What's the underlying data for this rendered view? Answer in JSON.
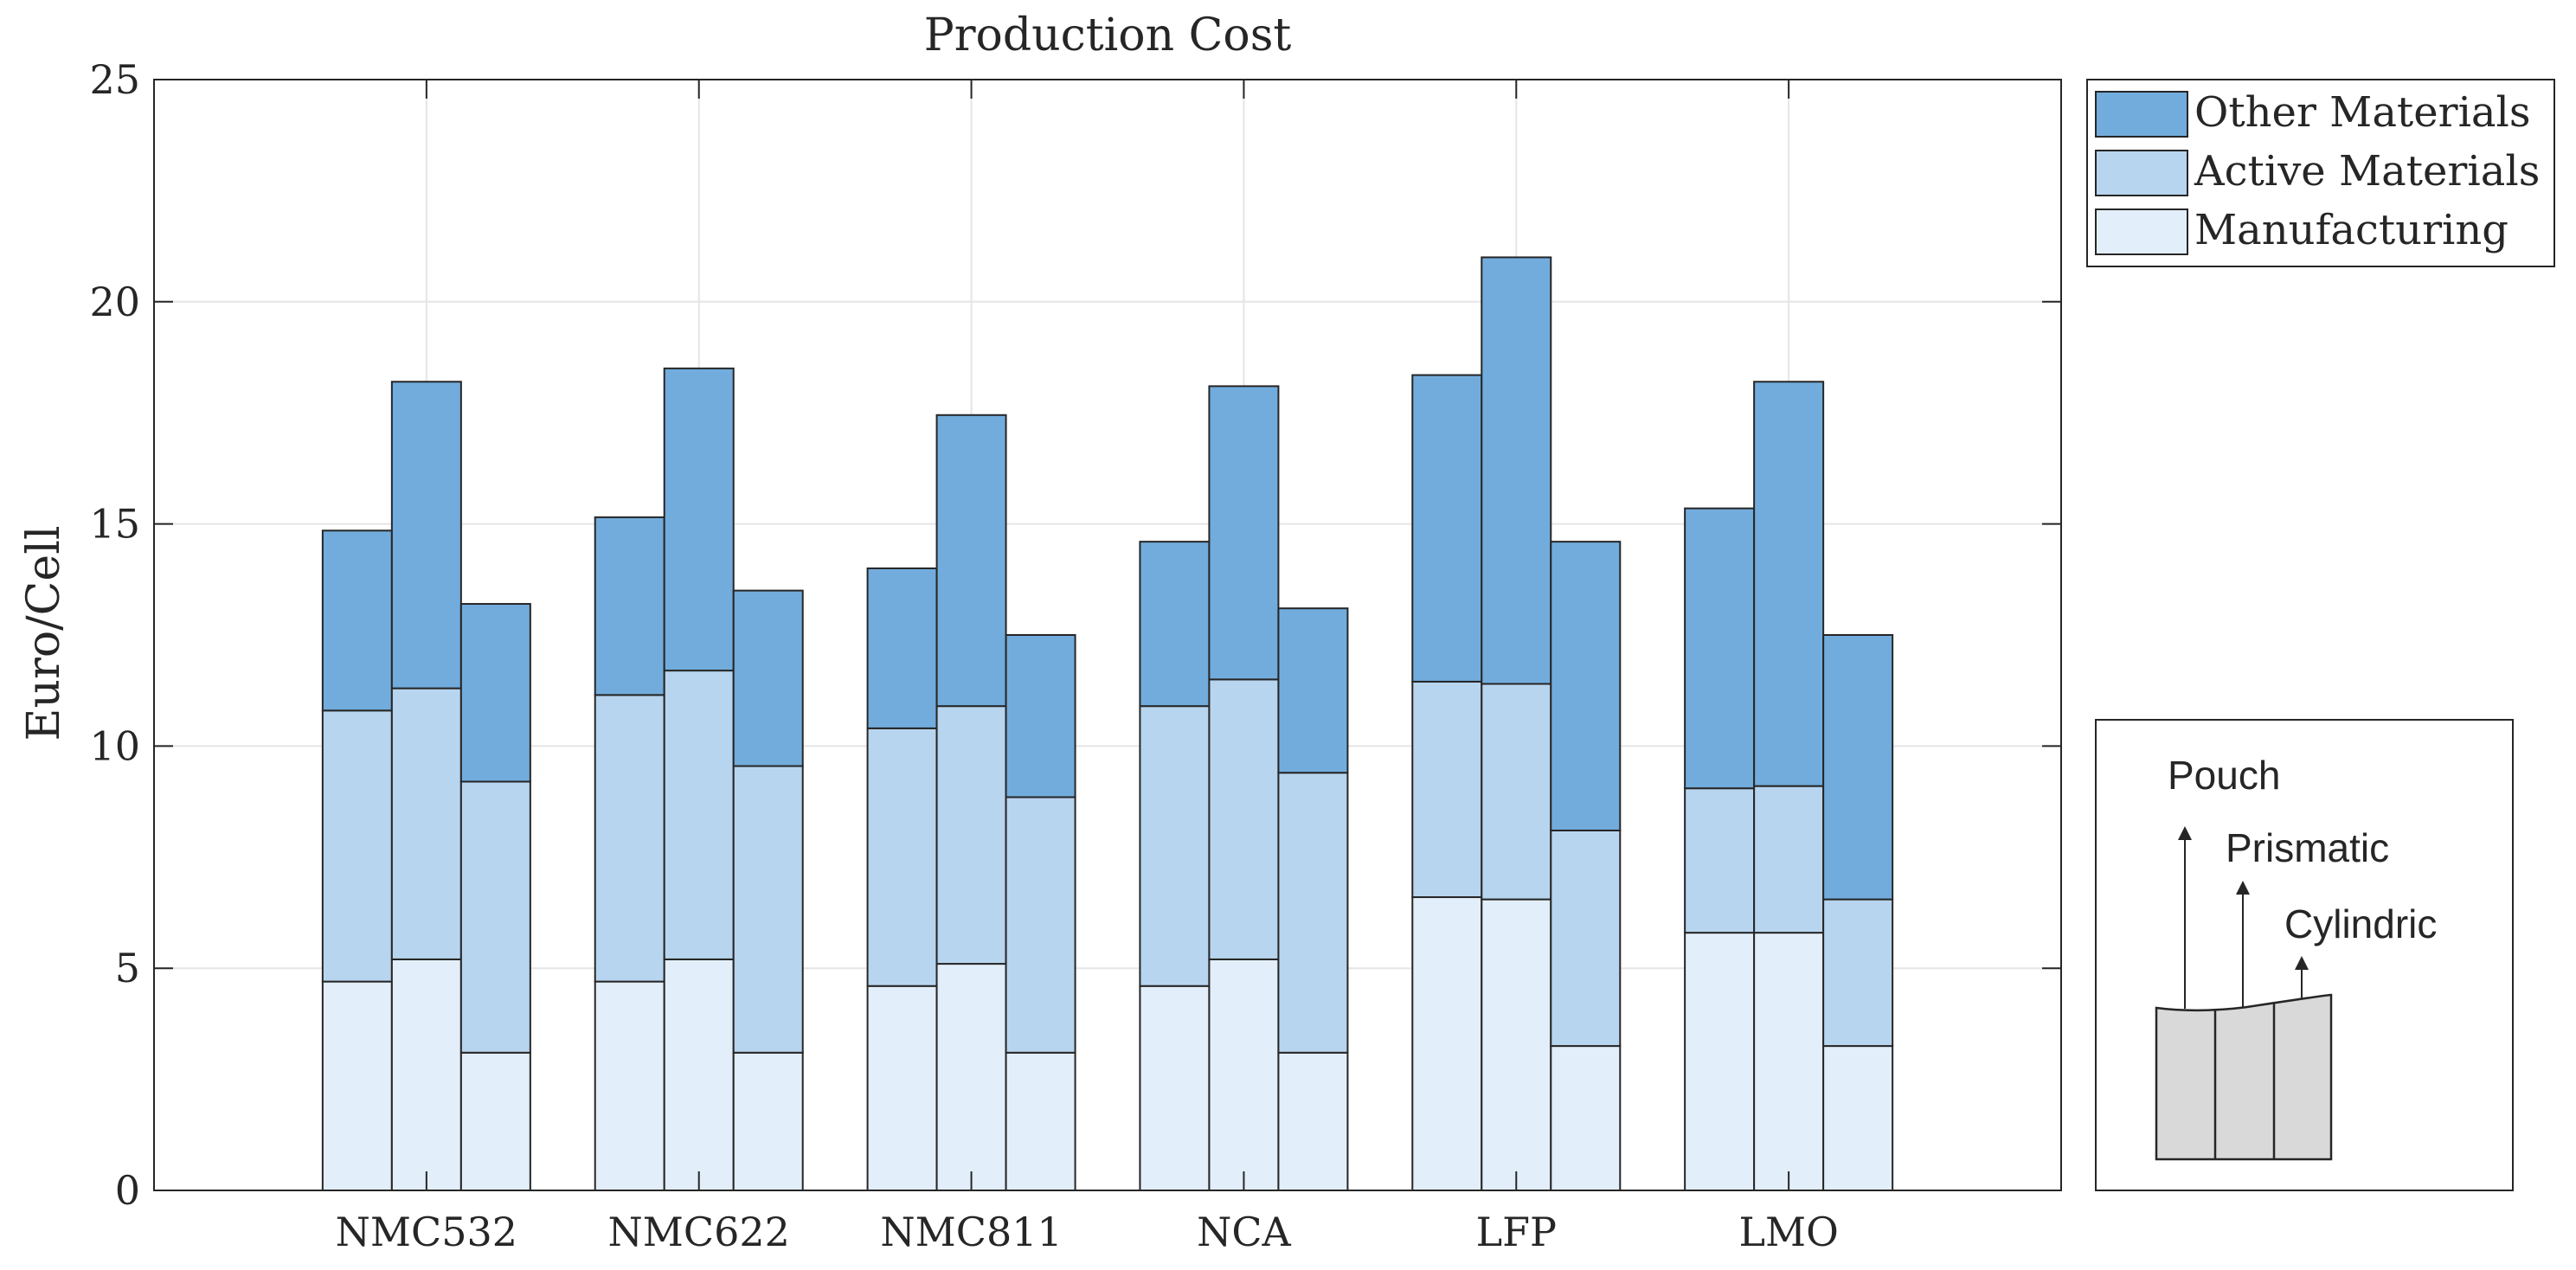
{
  "chart_data": {
    "type": "bar",
    "stacked": true,
    "title": "Production Cost",
    "xlabel": "",
    "ylabel": "Euro/Cell",
    "ylim": [
      0,
      25
    ],
    "yticks": [
      0,
      5,
      10,
      15,
      20,
      25
    ],
    "grid": true,
    "legend_position": "top-right-outside",
    "categories": [
      "NMC532",
      "NMC622",
      "NMC811",
      "NCA",
      "LFP",
      "LMO"
    ],
    "formats": [
      "Pouch",
      "Prismatic",
      "Cylindric"
    ],
    "series": [
      {
        "name": "Manufacturing",
        "color": "#e2eef9",
        "values": [
          [
            4.7,
            5.2,
            3.1
          ],
          [
            4.7,
            5.2,
            3.1
          ],
          [
            4.6,
            5.1,
            3.1
          ],
          [
            4.6,
            5.2,
            3.1
          ],
          [
            6.6,
            6.55,
            3.25
          ],
          [
            5.8,
            5.8,
            3.25
          ]
        ]
      },
      {
        "name": "Active Materials",
        "color": "#b8d5ef",
        "values": [
          [
            6.1,
            6.1,
            6.1
          ],
          [
            6.45,
            6.5,
            6.45
          ],
          [
            5.8,
            5.8,
            5.75
          ],
          [
            6.3,
            6.3,
            6.3
          ],
          [
            4.85,
            4.85,
            4.85
          ],
          [
            3.25,
            3.3,
            3.3
          ]
        ]
      },
      {
        "name": "Other Materials",
        "color": "#72acdc",
        "values": [
          [
            4.05,
            6.9,
            4.0
          ],
          [
            4.0,
            6.8,
            3.95
          ],
          [
            3.6,
            6.55,
            3.65
          ],
          [
            3.7,
            6.6,
            3.7
          ],
          [
            6.9,
            9.6,
            6.5
          ],
          [
            6.3,
            9.1,
            5.95
          ]
        ]
      }
    ],
    "legend_order": [
      "Other Materials",
      "Active Materials",
      "Manufacturing"
    ],
    "inset": {
      "labels": [
        "Pouch",
        "Prismatic",
        "Cylindric"
      ],
      "fill": "#d9d9d9"
    }
  }
}
